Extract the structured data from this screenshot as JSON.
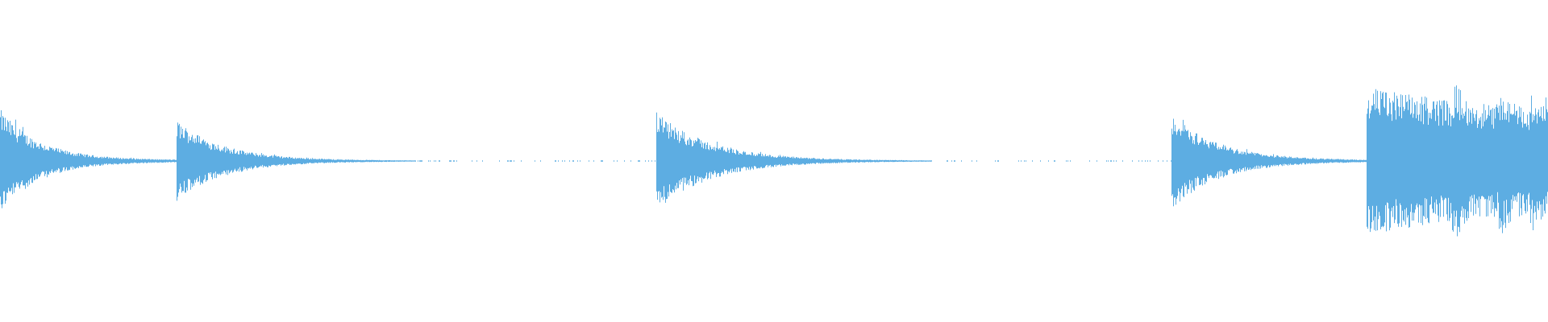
{
  "waveform": {
    "color": "#5dade2",
    "background": "#ffffff",
    "segments": [
      {
        "onset": 0.0,
        "end": 0.114,
        "peak": 0.31,
        "decay": 0.025,
        "tail": 0.012
      },
      {
        "onset": 0.114,
        "end": 0.424,
        "peak": 0.25,
        "decay": 0.03,
        "tail": 0.006
      },
      {
        "onset": 0.424,
        "end": 0.757,
        "peak": 0.3,
        "decay": 0.035,
        "tail": 0.005
      },
      {
        "onset": 0.757,
        "end": 0.883,
        "peak": 0.29,
        "decay": 0.03,
        "tail": 0.008
      },
      {
        "onset": 0.883,
        "end": 1.0,
        "peak": 0.31,
        "decay": 0.2,
        "tail": 0.15,
        "bursts": [
          0.94,
          0.97,
          0.99
        ]
      }
    ]
  }
}
